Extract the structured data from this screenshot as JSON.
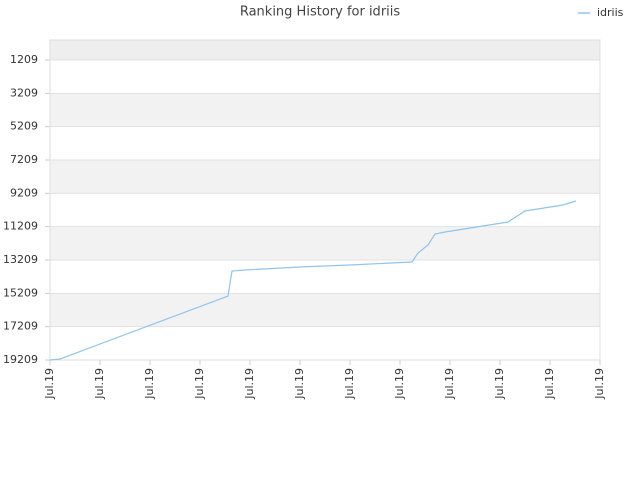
{
  "chart_data": {
    "type": "line",
    "title": "Ranking History for idriis",
    "x": [
      0,
      0.2,
      3.56,
      3.64,
      3.9,
      5.0,
      6.0,
      7.24,
      7.36,
      7.56,
      7.7,
      7.9,
      9.16,
      9.5,
      10.26,
      10.52
    ],
    "series": [
      {
        "name": "idriis",
        "color": "#90c4ee",
        "values": [
          19209,
          19149,
          15369,
          13869,
          13809,
          13629,
          13509,
          13329,
          12789,
          12309,
          11649,
          11529,
          10929,
          10269,
          9909,
          9669
        ]
      }
    ],
    "xlim": [
      0,
      11
    ],
    "xticks": [
      {
        "value": 0,
        "label": "Jul.19"
      },
      {
        "value": 1,
        "label": "Jul.19"
      },
      {
        "value": 2,
        "label": "Jul.19"
      },
      {
        "value": 3,
        "label": "Jul.19"
      },
      {
        "value": 4,
        "label": "Jul.19"
      },
      {
        "value": 5,
        "label": "Jul.19"
      },
      {
        "value": 6,
        "label": "Jul.19"
      },
      {
        "value": 7,
        "label": "Jul.19"
      },
      {
        "value": 8,
        "label": "Jul.19"
      },
      {
        "value": 9,
        "label": "Jul.19"
      },
      {
        "value": 10,
        "label": "Jul.19"
      },
      {
        "value": 11,
        "label": "Jul.19"
      }
    ],
    "ylim": [
      19209,
      9
    ],
    "yticks": [
      1209,
      3209,
      5209,
      7209,
      9209,
      11209,
      13209,
      15209,
      17209,
      19209
    ],
    "grid": true,
    "legend": "top-right"
  }
}
